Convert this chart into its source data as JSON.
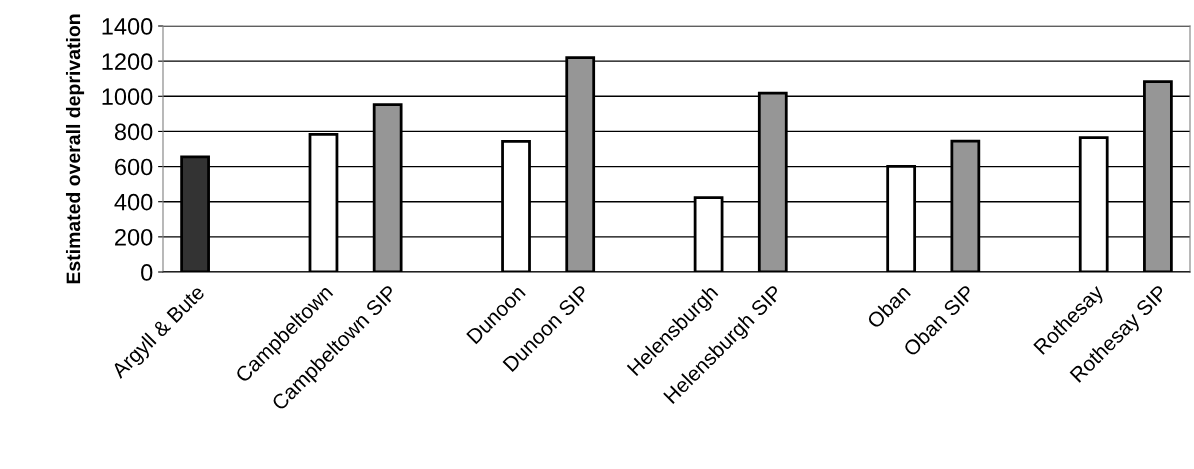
{
  "chart_data": {
    "type": "bar",
    "ylabel": "Estimated overall deprivation",
    "categories": [
      "Argyll & Bute",
      null,
      "Campbeltown",
      "Campbeltown SIP",
      null,
      "Dunoon",
      "Dunoon SIP",
      null,
      "Helensburgh",
      "Helensburgh SIP",
      null,
      "Oban",
      "Oban SIP",
      null,
      "Rothesay",
      "Rothesay SIP"
    ],
    "values": [
      655,
      null,
      783,
      952,
      null,
      743,
      1220,
      null,
      423,
      1018,
      null,
      601,
      745,
      null,
      765,
      1083
    ],
    "colors": [
      "#333333",
      null,
      "#ffffff",
      "#969696",
      null,
      "#ffffff",
      "#969696",
      null,
      "#ffffff",
      "#969696",
      null,
      "#ffffff",
      "#969696",
      null,
      "#ffffff",
      "#969696"
    ],
    "ylim": [
      0,
      1400
    ],
    "yticks": [
      0,
      200,
      400,
      600,
      800,
      1000,
      1200,
      1400
    ],
    "grid": "y"
  }
}
